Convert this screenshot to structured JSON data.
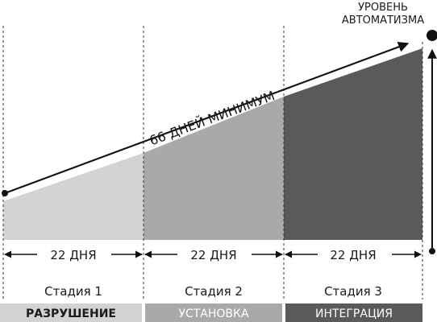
{
  "level_label": [
    "УРОВЕНЬ",
    "АВТОМАТИЗМА"
  ],
  "arrow_label": "66 ДНЕЙ МИНИМУМ",
  "stages": [
    {
      "duration": "22 ДНЯ",
      "name": "Стадия 1",
      "phase": "РАЗРУШЕНИЕ",
      "fill": "#d3d3d3",
      "band": "#d3d3d3",
      "band_text": "#1a1a1a"
    },
    {
      "duration": "22 ДНЯ",
      "name": "Стадия 2",
      "phase": "УСТАНОВКА",
      "fill": "#a9a9a9",
      "band": "#a9a9a9",
      "band_text": "#ffffff"
    },
    {
      "duration": "22 ДНЯ",
      "name": "Стадия 3",
      "phase": "ИНТЕГРАЦИЯ",
      "fill": "#5a5a5a",
      "band": "#5a5a5a",
      "band_text": "#ffffff"
    }
  ]
}
